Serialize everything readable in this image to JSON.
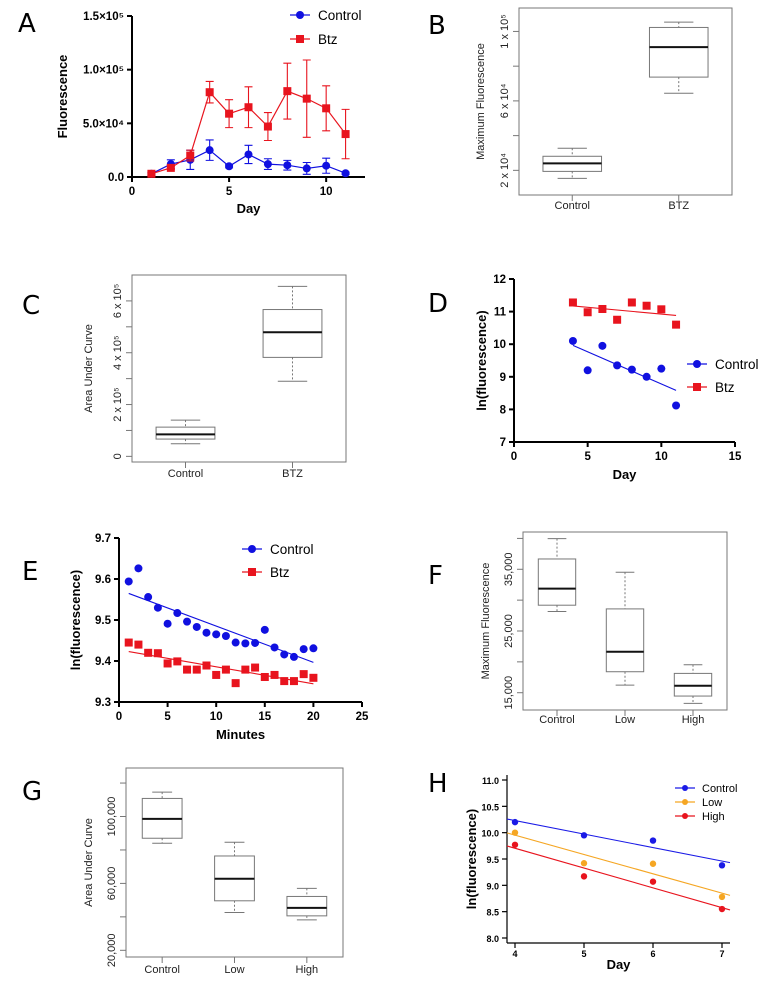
{
  "chart_data": [
    {
      "panel": "A",
      "type": "line",
      "style": "prism",
      "xlabel": "Day",
      "ylabel": "Fluorescence",
      "xlim": [
        0,
        12
      ],
      "ylim": [
        0,
        150000
      ],
      "xticks": [
        {
          "value": 0,
          "label": "0"
        },
        {
          "value": 5,
          "label": "5"
        },
        {
          "value": 10,
          "label": "10"
        }
      ],
      "yticks": [
        {
          "value": 0,
          "label": "0.0"
        },
        {
          "value": 50000,
          "label": "5.0×10⁴"
        },
        {
          "value": 100000,
          "label": "1.0×10⁵"
        },
        {
          "value": 150000,
          "label": "1.5×10⁵"
        }
      ],
      "legend_position": "top-right",
      "series": [
        {
          "name": "Control",
          "color": "#1010e0",
          "marker": "circle",
          "x": [
            1,
            2,
            3,
            4,
            5,
            6,
            7,
            8,
            9,
            10,
            11
          ],
          "y": [
            3000,
            12000,
            16000,
            25000,
            10000,
            21000,
            12000,
            11000,
            8000,
            10500,
            3500
          ],
          "error": [
            1500,
            4000,
            9000,
            9500,
            1500,
            8500,
            5000,
            4500,
            5500,
            7000,
            1000
          ]
        },
        {
          "name": "Btz",
          "color": "#e8141e",
          "marker": "square",
          "x": [
            1,
            2,
            3,
            4,
            5,
            6,
            7,
            8,
            9,
            10,
            11
          ],
          "y": [
            3000,
            8500,
            20000,
            79000,
            59000,
            65000,
            47000,
            80000,
            73000,
            64000,
            40000
          ],
          "error": [
            1000,
            1500,
            5000,
            10000,
            13000,
            19000,
            13000,
            26000,
            36000,
            21000,
            23000
          ]
        }
      ]
    },
    {
      "panel": "B",
      "type": "box",
      "style": "r",
      "ylabel": "Maximum Fluorescence",
      "ylim": [
        5800,
        113500
      ],
      "yticks": [
        {
          "value": 20000,
          "label": "2 x 10⁴"
        },
        {
          "value": 40000,
          "label": ""
        },
        {
          "value": 60000,
          "label": "6 x 10⁴"
        },
        {
          "value": 80000,
          "label": ""
        },
        {
          "value": 100000,
          "label": "1 x 10⁵"
        }
      ],
      "categories": [
        "Control",
        "BTZ"
      ],
      "boxes": [
        {
          "min": 15400,
          "q1": 19400,
          "median": 24000,
          "q3": 28100,
          "max": 32700
        },
        {
          "min": 64400,
          "q1": 73700,
          "median": 91000,
          "q3": 102300,
          "max": 105400
        }
      ]
    },
    {
      "panel": "C",
      "type": "box",
      "style": "r",
      "ylabel": "Area Under Curve",
      "ylim": [
        -21800,
        700000
      ],
      "yticks": [
        {
          "value": 0,
          "label": "0"
        },
        {
          "value": 100000,
          "label": ""
        },
        {
          "value": 200000,
          "label": "2 x 10⁵"
        },
        {
          "value": 300000,
          "label": ""
        },
        {
          "value": 400000,
          "label": "4 x 10⁵"
        },
        {
          "value": 500000,
          "label": ""
        },
        {
          "value": 600000,
          "label": "6 x 10⁵"
        }
      ],
      "categories": [
        "Control",
        "BTZ"
      ],
      "boxes": [
        {
          "min": 48700,
          "q1": 66700,
          "median": 84600,
          "q3": 112800,
          "max": 139700
        },
        {
          "min": 289700,
          "q1": 382000,
          "median": 479000,
          "q3": 566700,
          "max": 656000
        }
      ]
    },
    {
      "panel": "D",
      "type": "scatter",
      "style": "prism",
      "xlabel": "Day",
      "ylabel": "ln(fluorescence)",
      "xlim": [
        0,
        15
      ],
      "ylim": [
        7,
        12
      ],
      "xticks": [
        {
          "value": 0,
          "label": "0"
        },
        {
          "value": 5,
          "label": "5"
        },
        {
          "value": 10,
          "label": "10"
        },
        {
          "value": 15,
          "label": "15"
        }
      ],
      "yticks": [
        {
          "value": 7,
          "label": "7"
        },
        {
          "value": 8,
          "label": "8"
        },
        {
          "value": 9,
          "label": "9"
        },
        {
          "value": 10,
          "label": "10"
        },
        {
          "value": 11,
          "label": "11"
        },
        {
          "value": 12,
          "label": "12"
        }
      ],
      "legend_position": "right",
      "trendline": "linear",
      "series": [
        {
          "name": "Control",
          "color": "#1010e0",
          "marker": "circle",
          "x": [
            4,
            5,
            6,
            7,
            8,
            9,
            10,
            11
          ],
          "y": [
            10.1,
            9.2,
            9.95,
            9.35,
            9.22,
            9.0,
            9.25,
            8.12
          ]
        },
        {
          "name": "Btz",
          "color": "#e8141e",
          "marker": "square",
          "x": [
            4,
            5,
            6,
            7,
            8,
            9,
            10,
            11
          ],
          "y": [
            11.28,
            10.98,
            11.08,
            10.75,
            11.28,
            11.18,
            11.07,
            10.6
          ]
        }
      ]
    },
    {
      "panel": "E",
      "type": "scatter",
      "style": "prism",
      "xlabel": "Minutes",
      "ylabel": "ln(fluorescence)",
      "xlim": [
        0,
        25
      ],
      "ylim": [
        9.3,
        9.7
      ],
      "xticks": [
        {
          "value": 0,
          "label": "0"
        },
        {
          "value": 5,
          "label": "5"
        },
        {
          "value": 10,
          "label": "10"
        },
        {
          "value": 15,
          "label": "15"
        },
        {
          "value": 20,
          "label": "20"
        },
        {
          "value": 25,
          "label": "25"
        }
      ],
      "yticks": [
        {
          "value": 9.3,
          "label": "9.3"
        },
        {
          "value": 9.4,
          "label": "9.4"
        },
        {
          "value": 9.5,
          "label": "9.5"
        },
        {
          "value": 9.6,
          "label": "9.6"
        },
        {
          "value": 9.7,
          "label": "9.7"
        }
      ],
      "legend_position": "top-right",
      "trendline": "linear",
      "series": [
        {
          "name": "Control",
          "color": "#1010e0",
          "marker": "circle",
          "x": [
            1,
            2,
            3,
            4,
            5,
            6,
            7,
            8,
            9,
            10,
            11,
            12,
            13,
            14,
            15,
            16,
            17,
            18,
            19,
            20
          ],
          "y": [
            9.594,
            9.626,
            9.556,
            9.53,
            9.491,
            9.517,
            9.496,
            9.483,
            9.469,
            9.465,
            9.461,
            9.445,
            9.443,
            9.444,
            9.476,
            9.433,
            9.416,
            9.41,
            9.429,
            9.431
          ]
        },
        {
          "name": "Btz",
          "color": "#e8141e",
          "marker": "square",
          "x": [
            1,
            2,
            3,
            4,
            5,
            6,
            7,
            8,
            9,
            10,
            11,
            12,
            13,
            14,
            15,
            16,
            17,
            18,
            19,
            20
          ],
          "y": [
            9.445,
            9.44,
            9.42,
            9.419,
            9.394,
            9.399,
            9.379,
            9.379,
            9.389,
            9.366,
            9.379,
            9.346,
            9.379,
            9.384,
            9.361,
            9.366,
            9.351,
            9.351,
            9.368,
            9.359
          ]
        }
      ]
    },
    {
      "panel": "F",
      "type": "box",
      "style": "r",
      "ylabel": "Maximum Fluorescence",
      "ylim": [
        12200,
        41040
      ],
      "yticks": [
        {
          "value": 15000,
          "label": "15,000"
        },
        {
          "value": 20000,
          "label": ""
        },
        {
          "value": 25000,
          "label": "25,000"
        },
        {
          "value": 30000,
          "label": ""
        },
        {
          "value": 35000,
          "label": "35,000"
        },
        {
          "value": 40000,
          "label": ""
        }
      ],
      "categories": [
        "Control",
        "Low",
        "High"
      ],
      "boxes": [
        {
          "min": 28150,
          "q1": 29180,
          "median": 31870,
          "q3": 36670,
          "max": 39960
        },
        {
          "min": 16240,
          "q1": 18400,
          "median": 21630,
          "q3": 28580,
          "max": 34510
        },
        {
          "min": 13280,
          "q1": 14460,
          "median": 16130,
          "q3": 18130,
          "max": 19530
        }
      ]
    },
    {
      "panel": "G",
      "type": "box",
      "style": "r",
      "ylabel": "Area Under Curve",
      "ylim": [
        16000,
        129000
      ],
      "yticks": [
        {
          "value": 20000,
          "label": "20,000"
        },
        {
          "value": 40000,
          "label": ""
        },
        {
          "value": 60000,
          "label": "60,000"
        },
        {
          "value": 80000,
          "label": ""
        },
        {
          "value": 100000,
          "label": "100,000"
        },
        {
          "value": 120000,
          "label": ""
        }
      ],
      "categories": [
        "Control",
        "Low",
        "High"
      ],
      "boxes": [
        {
          "min": 84000,
          "q1": 87000,
          "median": 98600,
          "q3": 110800,
          "max": 114600
        },
        {
          "min": 42600,
          "q1": 49600,
          "median": 62800,
          "q3": 76400,
          "max": 84600
        },
        {
          "min": 38200,
          "q1": 40600,
          "median": 45400,
          "q3": 52200,
          "max": 57000
        }
      ]
    },
    {
      "panel": "H",
      "type": "scatter",
      "style": "ggsmall",
      "xlabel": "Day",
      "ylabel": "ln(fluorescence)",
      "xlim": [
        3.884,
        7.116
      ],
      "ylim": [
        7.905,
        11.095
      ],
      "xticks": [
        {
          "value": 4,
          "label": "4"
        },
        {
          "value": 5,
          "label": "5"
        },
        {
          "value": 6,
          "label": "6"
        },
        {
          "value": 7,
          "label": "7"
        }
      ],
      "yticks": [
        {
          "value": 8.0,
          "label": "8.0"
        },
        {
          "value": 8.5,
          "label": "8.5"
        },
        {
          "value": 9.0,
          "label": "9.0"
        },
        {
          "value": 9.5,
          "label": "9.5"
        },
        {
          "value": 10.0,
          "label": "10.0"
        },
        {
          "value": 10.5,
          "label": "10.5"
        },
        {
          "value": 11.0,
          "label": "11.0"
        }
      ],
      "legend_position": "top-right",
      "trendline": "linear",
      "series": [
        {
          "name": "Control",
          "color": "#1a1ae6",
          "marker": "circle",
          "x": [
            4,
            5,
            6,
            7
          ],
          "y": [
            10.2,
            9.95,
            9.85,
            9.38
          ]
        },
        {
          "name": "Low",
          "color": "#f5a623",
          "marker": "circle",
          "x": [
            4,
            5,
            6,
            7
          ],
          "y": [
            10.0,
            9.42,
            9.41,
            8.78
          ]
        },
        {
          "name": "High",
          "color": "#e8141e",
          "marker": "circle",
          "x": [
            4,
            5,
            6,
            7
          ],
          "y": [
            9.77,
            9.17,
            9.07,
            8.55
          ]
        }
      ]
    }
  ]
}
